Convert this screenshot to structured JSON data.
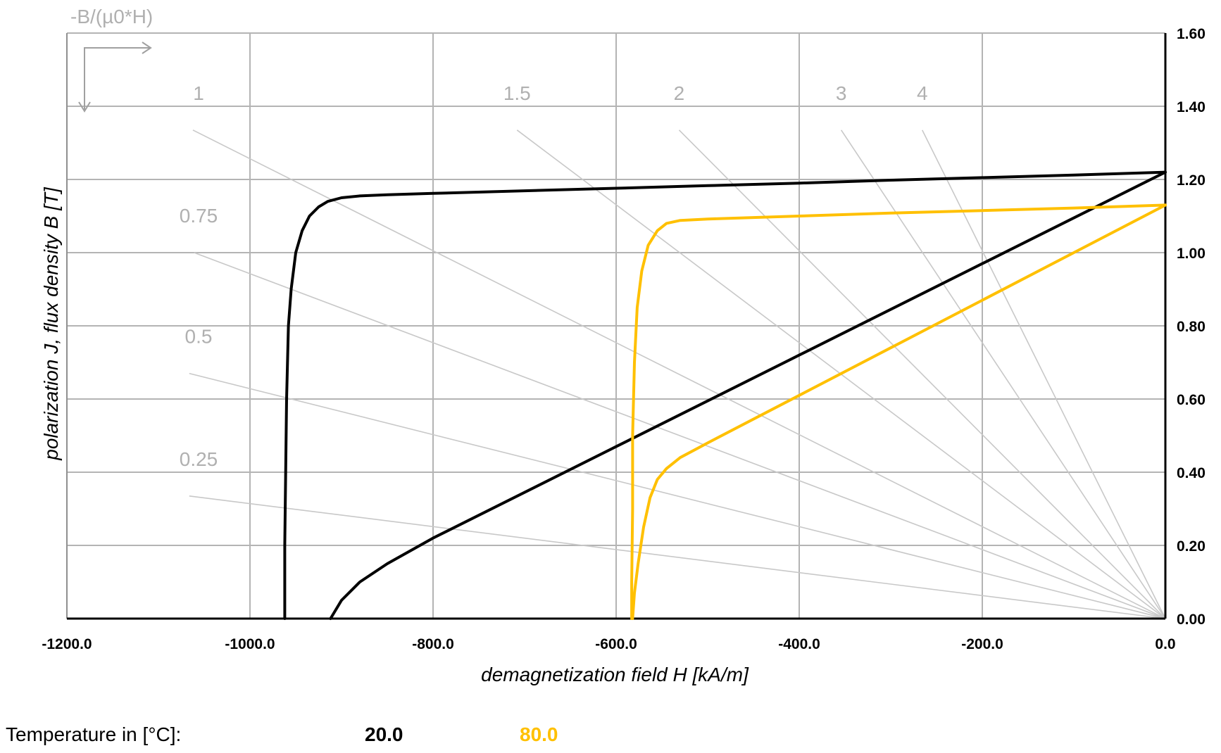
{
  "chart_data": {
    "type": "line",
    "xlabel": "demagnetization field H [kA/m]",
    "ylabel": "polarization J, flux density B [T]",
    "xlim": [
      -1200,
      0
    ],
    "ylim": [
      0,
      1.6
    ],
    "x_ticks": [
      "-1200.0",
      "-1000.0",
      "-800.0",
      "-600.0",
      "-400.0",
      "-200.0",
      "0.0"
    ],
    "y_ticks": [
      "0.00",
      "0.20",
      "0.40",
      "0.60",
      "0.80",
      "1.00",
      "1.20",
      "1.40",
      "1.60"
    ],
    "grid": true,
    "y_axis_side": "right",
    "load_lines": {
      "label": "-B/(µ0*H)",
      "values": [
        "0.25",
        "0.5",
        "0.75",
        "1",
        "1.5",
        "2",
        "3",
        "4"
      ]
    },
    "legend": {
      "title": "Temperature in [°C]:",
      "position": "bottom"
    },
    "series": [
      {
        "name": "20.0",
        "color": "#000000",
        "curves": [
          {
            "kind": "J",
            "points": [
              [
                0,
                1.22
              ],
              [
                -100,
                1.212
              ],
              [
                -200,
                1.205
              ],
              [
                -300,
                1.198
              ],
              [
                -400,
                1.19
              ],
              [
                -500,
                1.183
              ],
              [
                -600,
                1.176
              ],
              [
                -700,
                1.169
              ],
              [
                -800,
                1.162
              ],
              [
                -850,
                1.158
              ],
              [
                -880,
                1.155
              ],
              [
                -900,
                1.15
              ],
              [
                -915,
                1.14
              ],
              [
                -925,
                1.125
              ],
              [
                -935,
                1.1
              ],
              [
                -943,
                1.06
              ],
              [
                -950,
                1.0
              ],
              [
                -955,
                0.9
              ],
              [
                -958,
                0.8
              ],
              [
                -960,
                0.6
              ],
              [
                -961,
                0.4
              ],
              [
                -962,
                0.2
              ],
              [
                -962,
                0.0
              ]
            ]
          },
          {
            "kind": "B",
            "points": [
              [
                0,
                1.22
              ],
              [
                -200,
                0.97
              ],
              [
                -400,
                0.72
              ],
              [
                -600,
                0.47
              ],
              [
                -800,
                0.22
              ],
              [
                -850,
                0.15
              ],
              [
                -880,
                0.1
              ],
              [
                -900,
                0.05
              ],
              [
                -912,
                0.0
              ]
            ]
          }
        ]
      },
      {
        "name": "80.0",
        "color": "#FFC000",
        "curves": [
          {
            "kind": "J",
            "points": [
              [
                0,
                1.13
              ],
              [
                -100,
                1.122
              ],
              [
                -200,
                1.115
              ],
              [
                -300,
                1.108
              ],
              [
                -400,
                1.1
              ],
              [
                -500,
                1.092
              ],
              [
                -530,
                1.088
              ],
              [
                -545,
                1.08
              ],
              [
                -555,
                1.06
              ],
              [
                -565,
                1.02
              ],
              [
                -572,
                0.95
              ],
              [
                -577,
                0.85
              ],
              [
                -580,
                0.7
              ],
              [
                -582,
                0.5
              ],
              [
                -582,
                0.3
              ],
              [
                -583,
                0.1
              ],
              [
                -583,
                0.0
              ]
            ]
          },
          {
            "kind": "B",
            "points": [
              [
                0,
                1.13
              ],
              [
                -100,
                1.0
              ],
              [
                -200,
                0.87
              ],
              [
                -300,
                0.74
              ],
              [
                -400,
                0.61
              ],
              [
                -500,
                0.48
              ],
              [
                -530,
                0.44
              ],
              [
                -545,
                0.41
              ],
              [
                -555,
                0.38
              ],
              [
                -563,
                0.33
              ],
              [
                -570,
                0.25
              ],
              [
                -576,
                0.15
              ],
              [
                -580,
                0.07
              ],
              [
                -582,
                0.0
              ]
            ]
          }
        ]
      }
    ]
  }
}
